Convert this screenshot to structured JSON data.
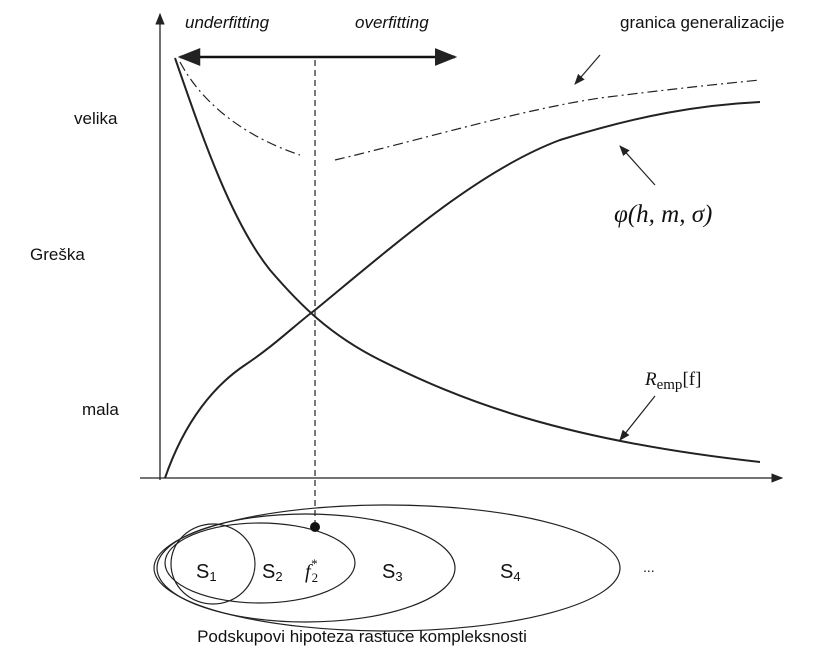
{
  "annotations": {
    "underfitting": "underfitting",
    "overfitting": "overfitting",
    "bound": "granica generalizacije"
  },
  "y_axis": {
    "label": "Greška",
    "high": "velika",
    "low": "mala"
  },
  "curves": {
    "phi": "φ(h, m, σ)",
    "remp": {
      "symbol": "R",
      "subscript": "emp",
      "argument": "[f]"
    }
  },
  "sets": [
    {
      "symbol": "S",
      "index": "1"
    },
    {
      "symbol": "S",
      "index": "2"
    },
    {
      "symbol": "S",
      "index": "3"
    },
    {
      "symbol": "S",
      "index": "4"
    }
  ],
  "optimum": {
    "symbol": "f",
    "subscript": "2",
    "superscript": "*"
  },
  "ellipsis": "...",
  "caption": "Podskupovi hipoteza rastuće kompleksnosti"
}
